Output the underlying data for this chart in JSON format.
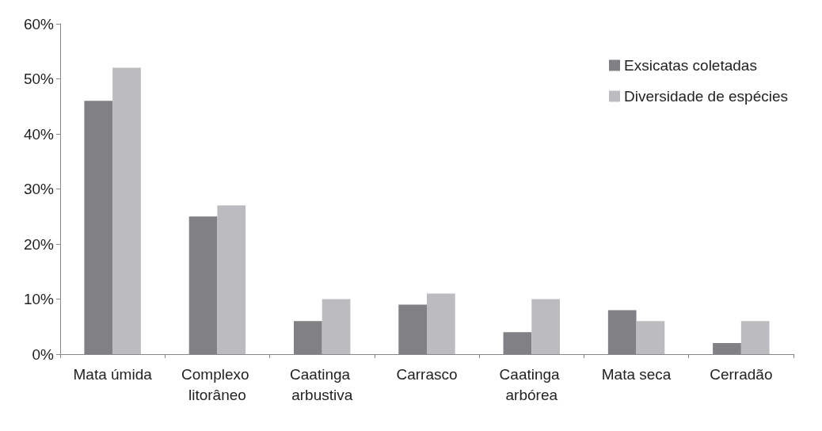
{
  "chart_data": {
    "type": "bar",
    "categories": [
      "Mata úmida",
      "Complexo litorâneo",
      "Caatinga arbustiva",
      "Carrasco",
      "Caatinga arbórea",
      "Mata seca",
      "Cerradão"
    ],
    "series": [
      {
        "name": "Exsicatas coletadas",
        "color": "#808085",
        "values": [
          46,
          25,
          6,
          9,
          4,
          8,
          2
        ]
      },
      {
        "name": "Diversidade de espécies",
        "color": "#bcbcc0",
        "values": [
          52,
          27,
          10,
          11,
          10,
          6,
          6
        ]
      }
    ],
    "ylim": [
      0,
      60
    ],
    "yticks": [
      {
        "value": 0,
        "label": "0%"
      },
      {
        "value": 10,
        "label": "10%"
      },
      {
        "value": 20,
        "label": "20%"
      },
      {
        "value": 30,
        "label": "30%"
      },
      {
        "value": 40,
        "label": "40%"
      },
      {
        "value": 50,
        "label": "50%"
      },
      {
        "value": 60,
        "label": "60%"
      }
    ],
    "grid": false,
    "legend": "top right"
  }
}
